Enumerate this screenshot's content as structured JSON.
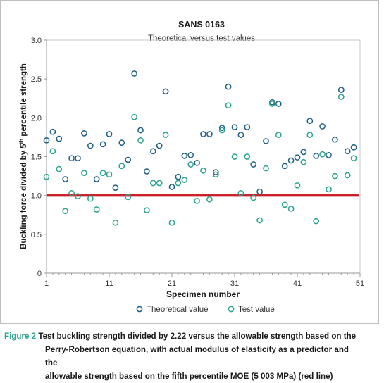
{
  "chart_data": {
    "type": "scatter",
    "title": "SANS 0163",
    "subtitle": "Theoretical versus test values",
    "xlabel": "Specimen number",
    "ylabel_main": "Buckling force divided by 5",
    "ylabel_sup": "th",
    "ylabel_tail": " percentile strength",
    "xlim": [
      1,
      51
    ],
    "ylim": [
      0,
      3.0
    ],
    "x_ticks": [
      1,
      11,
      21,
      31,
      41,
      51
    ],
    "x_tick_labels": [
      "1",
      "11",
      "21",
      "31",
      "41",
      "51"
    ],
    "y_ticks": [
      0,
      0.5,
      1.0,
      1.5,
      2.0,
      2.5,
      3.0
    ],
    "y_tick_labels": [
      "0",
      "0.5",
      "1.0",
      "1.5",
      "2.0",
      "2.5",
      "3.0"
    ],
    "grid": false,
    "legend_position": "bottom",
    "reference_line": {
      "y": 1.0,
      "color": "#c9222b"
    },
    "series": [
      {
        "name": "Theoretical value",
        "color": "#1f5f87",
        "x": [
          1,
          2,
          3,
          4,
          5,
          6,
          7,
          8,
          9,
          10,
          11,
          12,
          13,
          14,
          15,
          16,
          17,
          18,
          19,
          20,
          21,
          22,
          23,
          24,
          25,
          26,
          27,
          28,
          29,
          30,
          31,
          32,
          33,
          34,
          35,
          36,
          37,
          38,
          39,
          40,
          41,
          42,
          43,
          44,
          45,
          46,
          47,
          48,
          49,
          50
        ],
        "y": [
          1.71,
          1.82,
          1.73,
          1.21,
          1.48,
          1.48,
          1.8,
          1.64,
          1.21,
          1.66,
          1.79,
          1.1,
          1.68,
          1.46,
          2.57,
          1.84,
          1.31,
          1.57,
          1.64,
          2.34,
          1.11,
          1.24,
          1.51,
          1.52,
          1.42,
          1.79,
          1.79,
          1.3,
          1.87,
          2.4,
          1.88,
          1.78,
          1.88,
          1.4,
          1.05,
          1.7,
          2.2,
          2.18,
          1.38,
          1.45,
          1.49,
          1.56,
          1.96,
          1.51,
          1.89,
          1.52,
          1.72,
          2.36,
          1.57,
          1.62
        ]
      },
      {
        "name": "Test value",
        "color": "#2aa38f",
        "x": [
          1,
          2,
          3,
          4,
          5,
          6,
          7,
          8,
          9,
          10,
          11,
          12,
          13,
          14,
          15,
          16,
          17,
          18,
          19,
          20,
          21,
          22,
          23,
          24,
          25,
          26,
          27,
          28,
          29,
          30,
          31,
          32,
          33,
          34,
          35,
          36,
          37,
          38,
          39,
          40,
          41,
          42,
          43,
          44,
          45,
          46,
          47,
          48,
          49,
          50
        ],
        "y": [
          1.24,
          1.57,
          1.34,
          0.8,
          1.03,
          0.99,
          1.29,
          0.96,
          0.82,
          1.29,
          1.27,
          0.65,
          1.38,
          0.98,
          2.01,
          1.71,
          0.81,
          1.16,
          1.16,
          1.78,
          0.65,
          1.16,
          1.2,
          1.4,
          0.93,
          1.32,
          0.95,
          1.27,
          1.84,
          2.16,
          1.5,
          1.03,
          1.5,
          0.97,
          0.68,
          1.35,
          2.18,
          1.78,
          0.88,
          0.83,
          1.13,
          1.43,
          1.78,
          0.67,
          1.53,
          1.08,
          1.25,
          2.27,
          1.26,
          1.48
        ]
      }
    ]
  },
  "caption": {
    "label": "Figure 2",
    "line1": "Test buckling strength divided by 2.22 versus the allowable strength based on the",
    "line2": "Perry-Robertson equation, with actual modulus of elasticity as a predictor and the",
    "line3": "allowable strength based on the fifth percentile MOE (5 003 MPa) (red line)"
  }
}
